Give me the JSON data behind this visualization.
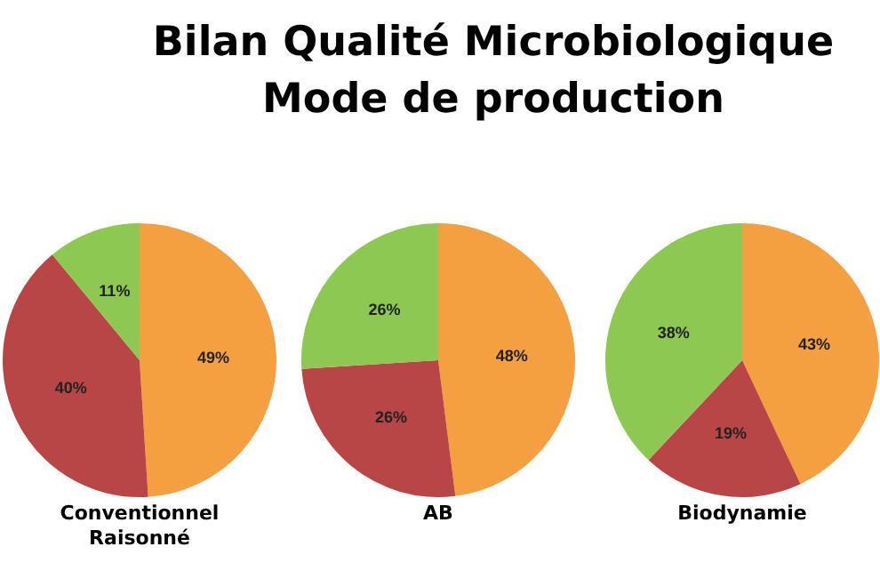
{
  "chart_data": [
    {
      "type": "pie",
      "title": "Bilan Qualité Microbiologique\nMode de production",
      "xlabel": "Conventionnel\nRaisonné",
      "categories": [
        null,
        null,
        null
      ],
      "values": [
        49,
        40,
        11
      ],
      "value_labels": [
        "49%",
        "40%",
        "11%"
      ],
      "colors": [
        "#f4a040",
        "#b94646",
        "#8dc853"
      ]
    },
    {
      "type": "pie",
      "xlabel": "AB",
      "categories": [
        null,
        null,
        null
      ],
      "values": [
        48,
        26,
        26
      ],
      "value_labels": [
        "48%",
        "26%",
        "26%"
      ],
      "colors": [
        "#f4a040",
        "#b94646",
        "#8dc853"
      ]
    },
    {
      "type": "pie",
      "xlabel": "Biodynamie",
      "categories": [
        null,
        null,
        null
      ],
      "values": [
        43,
        19,
        38
      ],
      "value_labels": [
        "43%",
        "19%",
        "38%"
      ],
      "colors": [
        "#f4a040",
        "#b94646",
        "#8dc853"
      ]
    }
  ]
}
